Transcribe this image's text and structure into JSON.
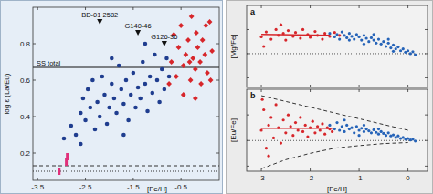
{
  "chart_data": [
    {
      "type": "scatter",
      "x_label": "[Fe/H]",
      "y_label": "log ε (La/Eu)",
      "xlim": [
        -3.6,
        0.3
      ],
      "ylim": [
        0.05,
        1.0
      ],
      "xticks": [
        -3.5,
        -2.5,
        -1.5,
        -0.5
      ],
      "yticks": [
        0.2,
        0.4,
        0.6,
        0.8
      ],
      "series": [
        {
          "color": "#1f3d8f",
          "marker": "circle",
          "x": [
            -2.95,
            -2.8,
            -2.7,
            -2.6,
            -2.55,
            -2.5,
            -2.45,
            -2.4,
            -2.35,
            -2.3,
            -2.25,
            -2.2,
            -2.15,
            -2.1,
            -2.05,
            -2.0,
            -1.95,
            -1.9,
            -1.85,
            -1.8,
            -1.75,
            -1.7,
            -1.65,
            -1.6,
            -1.55,
            -1.5,
            -1.45,
            -1.4,
            -1.35,
            -1.3,
            -1.25,
            -1.2,
            -1.15,
            -1.1,
            -1.05,
            -1.0,
            -0.95,
            -0.9,
            -0.85,
            -0.8,
            -0.75,
            -1.7,
            -2.6,
            -1.95,
            -1.25
          ],
          "values": [
            0.28,
            0.35,
            0.3,
            0.42,
            0.5,
            0.38,
            0.55,
            0.45,
            0.6,
            0.33,
            0.48,
            0.4,
            0.62,
            0.52,
            0.36,
            0.45,
            0.58,
            0.5,
            0.42,
            0.68,
            0.55,
            0.47,
            0.6,
            0.38,
            0.52,
            0.64,
            0.45,
            0.56,
            0.5,
            0.7,
            0.58,
            0.43,
            0.62,
            0.53,
            0.74,
            0.6,
            0.48,
            0.66,
            0.55,
            0.72,
            0.62,
            0.3,
            0.25,
            0.72,
            0.8
          ]
        },
        {
          "color": "#d7262b",
          "marker": "diamond",
          "x": [
            -0.75,
            -0.7,
            -0.65,
            -0.6,
            -0.55,
            -0.5,
            -0.45,
            -0.4,
            -0.35,
            -0.3,
            -0.28,
            -0.25,
            -0.2,
            -0.18,
            -0.15,
            -0.1,
            -0.08,
            -0.05,
            0.0,
            0.02,
            0.05,
            -0.2,
            -0.45,
            0.1,
            -0.32,
            0.15,
            0.12
          ],
          "values": [
            0.58,
            0.7,
            0.85,
            0.62,
            0.78,
            0.9,
            0.68,
            0.74,
            0.82,
            0.6,
            0.95,
            0.72,
            0.66,
            0.86,
            0.78,
            0.7,
            0.58,
            0.82,
            0.74,
            0.9,
            0.64,
            0.5,
            0.52,
            0.92,
            0.7,
            0.76,
            0.6
          ]
        },
        {
          "color": "#e0307a",
          "marker": "square",
          "x": [
            -3.05,
            -2.9,
            -2.88
          ],
          "values": [
            0.1,
            0.15,
            0.18
          ]
        }
      ],
      "annotations": [
        {
          "text": "BD-01 2582",
          "x": -2.2,
          "y": 0.92
        },
        {
          "text": "G140-46",
          "x": -1.4,
          "y": 0.86
        },
        {
          "text": "G126-36",
          "x": -0.85,
          "y": 0.8
        }
      ],
      "reference_lines": [
        {
          "value": 0.67,
          "label": "SS total",
          "line_style": "solid",
          "color": "#111111"
        },
        {
          "value": 0.13,
          "line_style": "dashed",
          "color": "#333333"
        },
        {
          "value": 0.1,
          "line_style": "dotted",
          "color": "#333333"
        }
      ]
    },
    {
      "type": "scatter",
      "title": "a",
      "y_label": "[Mg/Fe]",
      "tick_labels": false,
      "xlim": [
        -3.3,
        0.4
      ],
      "ylim": [
        -0.7,
        1.0
      ],
      "xticks": [
        -3,
        -2,
        -1,
        0
      ],
      "yticks": [
        -0.5,
        0,
        0.5
      ],
      "series": [
        {
          "color": "#2563b8",
          "marker": "circle",
          "x": [
            -1.6,
            -1.5,
            -1.45,
            -1.4,
            -1.35,
            -1.3,
            -1.25,
            -1.2,
            -1.15,
            -1.1,
            -1.05,
            -1.0,
            -0.95,
            -0.9,
            -0.85,
            -0.8,
            -0.75,
            -0.7,
            -0.65,
            -0.6,
            -0.55,
            -0.5,
            -0.45,
            -0.4,
            -0.35,
            -0.3,
            -0.25,
            -0.2,
            -0.15,
            -0.1,
            -0.05,
            0.0,
            0.05,
            0.1,
            0.15,
            -0.7,
            -0.4,
            -1.2,
            -0.3,
            -0.9
          ],
          "values": [
            0.42,
            0.35,
            0.4,
            0.3,
            0.45,
            0.38,
            0.33,
            0.42,
            0.36,
            0.3,
            0.4,
            0.35,
            0.28,
            0.38,
            0.32,
            0.25,
            0.33,
            0.28,
            0.22,
            0.3,
            0.2,
            0.25,
            0.15,
            0.22,
            0.12,
            0.18,
            0.1,
            0.14,
            0.06,
            0.1,
            0.03,
            0.06,
            0.0,
            0.04,
            -0.02,
            0.4,
            0.3,
            0.28,
            0.05,
            0.2
          ]
        },
        {
          "color": "#d7262b",
          "marker": "circle",
          "x": [
            -3.0,
            -2.9,
            -2.8,
            -2.7,
            -2.65,
            -2.55,
            -2.5,
            -2.45,
            -2.35,
            -2.3,
            -2.2,
            -2.15,
            -2.05,
            -2.0,
            -1.9,
            -1.85,
            -1.75,
            -1.7,
            -1.6,
            -1.5,
            -1.4,
            -2.6,
            -2.95
          ],
          "values": [
            0.35,
            0.45,
            0.3,
            0.5,
            0.38,
            0.42,
            0.28,
            0.48,
            0.36,
            0.44,
            0.32,
            0.5,
            0.4,
            0.34,
            0.46,
            0.38,
            0.3,
            0.42,
            0.36,
            0.44,
            0.38,
            0.6,
            0.15
          ]
        }
      ],
      "lines": [
        {
          "color": "#d7262b",
          "line_style": "solid",
          "x": [
            -3.0,
            -1.6
          ],
          "values": [
            0.4,
            0.38
          ]
        }
      ],
      "reference_lines": [
        {
          "value": 0,
          "line_style": "dotted",
          "color": "#555555"
        }
      ]
    },
    {
      "type": "scatter",
      "title": "b",
      "x_label": "[Fe/H]",
      "y_label": "[Eu/Fe]",
      "tick_labels": "x",
      "xlim": [
        -3.3,
        0.4
      ],
      "ylim": [
        -1.2,
        2.0
      ],
      "xticks": [
        -3,
        -2,
        -1,
        0
      ],
      "yticks": [
        -1,
        0,
        1
      ],
      "series": [
        {
          "color": "#2563b8",
          "marker": "circle",
          "x": [
            -1.6,
            -1.5,
            -1.45,
            -1.4,
            -1.35,
            -1.3,
            -1.25,
            -1.2,
            -1.15,
            -1.1,
            -1.05,
            -1.0,
            -0.95,
            -0.9,
            -0.85,
            -0.8,
            -0.75,
            -0.7,
            -0.65,
            -0.6,
            -0.55,
            -0.5,
            -0.45,
            -0.4,
            -0.35,
            -0.3,
            -0.25,
            -0.2,
            -0.15,
            -0.1,
            -0.05,
            0.0,
            0.05,
            0.1,
            0.15,
            -1.3,
            -0.9,
            -0.6,
            -1.0
          ],
          "values": [
            0.6,
            0.45,
            0.7,
            0.4,
            0.55,
            0.35,
            0.6,
            0.45,
            0.5,
            0.3,
            0.55,
            0.4,
            0.48,
            0.35,
            0.45,
            0.38,
            0.3,
            0.42,
            0.32,
            0.25,
            0.35,
            0.28,
            0.2,
            0.3,
            0.18,
            0.22,
            0.12,
            0.18,
            0.08,
            0.12,
            0.05,
            0.08,
            0.02,
            0.05,
            -0.02,
            0.8,
            0.6,
            0.45,
            0.2
          ]
        },
        {
          "color": "#d7262b",
          "marker": "circle",
          "x": [
            -3.0,
            -2.95,
            -2.9,
            -2.85,
            -2.8,
            -2.75,
            -2.7,
            -2.65,
            -2.6,
            -2.55,
            -2.5,
            -2.45,
            -2.4,
            -2.35,
            -2.3,
            -2.25,
            -2.2,
            -2.15,
            -2.1,
            -2.05,
            -2.0,
            -1.95,
            -1.9,
            -1.85,
            -1.8,
            -1.75,
            -1.7,
            -1.65,
            -1.6,
            -1.55,
            -2.98,
            -2.85
          ],
          "values": [
            0.4,
            1.2,
            -0.3,
            0.6,
            0.9,
            0.1,
            1.4,
            0.5,
            -0.1,
            0.8,
            0.3,
            1.0,
            0.55,
            0.2,
            0.7,
            0.4,
            0.9,
            0.35,
            0.6,
            0.15,
            0.5,
            0.75,
            0.3,
            0.55,
            0.4,
            0.65,
            0.25,
            0.5,
            0.45,
            0.35,
            1.6,
            -0.6
          ]
        }
      ],
      "lines": [
        {
          "color": "#d7262b",
          "line_style": "solid",
          "x": [
            -3.0,
            -1.5
          ],
          "values": [
            0.48,
            0.48
          ]
        },
        {
          "color": "#333333",
          "line_style": "dashed",
          "x": [
            -3.0,
            -2.0,
            -1.0,
            0.0
          ],
          "values": [
            1.75,
            1.3,
            0.85,
            0.4
          ]
        },
        {
          "color": "#333333",
          "line_style": "dashed",
          "x": [
            -3.0,
            -2.5,
            -2.0,
            -1.5,
            -1.0,
            -0.5,
            0.0
          ],
          "values": [
            -1.1,
            -0.75,
            -0.5,
            -0.3,
            -0.2,
            -0.12,
            -0.08
          ]
        }
      ],
      "reference_lines": [
        {
          "value": 0,
          "line_style": "dotted",
          "color": "#555555"
        }
      ]
    }
  ]
}
